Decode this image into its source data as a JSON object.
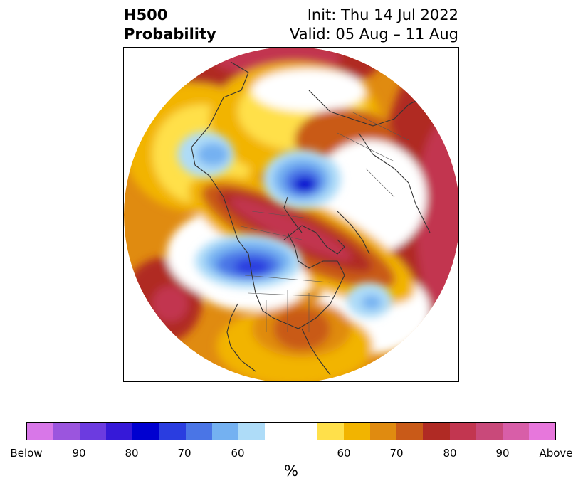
{
  "title": {
    "left_line1": "H500",
    "left_line2": "Probability",
    "right_line1": "Init: Thu 14 Jul 2022",
    "right_line2": "Valid: 05 Aug – 11 Aug"
  },
  "map": {
    "projection": "polar stereographic (North Pole)",
    "field": "H500 probability anomaly",
    "colors": {
      "above_60": "#ffe04a",
      "above_70": "#f2b400",
      "above_75": "#e08b10",
      "above_80": "#c95a18",
      "above_85": "#b02a24",
      "above_90": "#c23650",
      "below_60": "#aedcf8",
      "below_70": "#74b1f1",
      "below_75": "#4a75e6",
      "below_80": "#2a3de0",
      "below_85": "#0000d0"
    }
  },
  "colorbar": {
    "label": "%",
    "colors": [
      "#d877e8",
      "#9b55de",
      "#6c3be0",
      "#3619d8",
      "#0000d0",
      "#2a3de0",
      "#4a75e6",
      "#74b1f1",
      "#aedcf8",
      "#ffffff",
      "#ffe04a",
      "#f2b400",
      "#e08b10",
      "#c95a18",
      "#b02a24",
      "#c23650",
      "#c9497a",
      "#d85ea8",
      "#e777dc"
    ],
    "ticks": [
      "Below",
      "90",
      "80",
      "70",
      "60",
      "60",
      "70",
      "80",
      "90",
      "Above"
    ]
  }
}
